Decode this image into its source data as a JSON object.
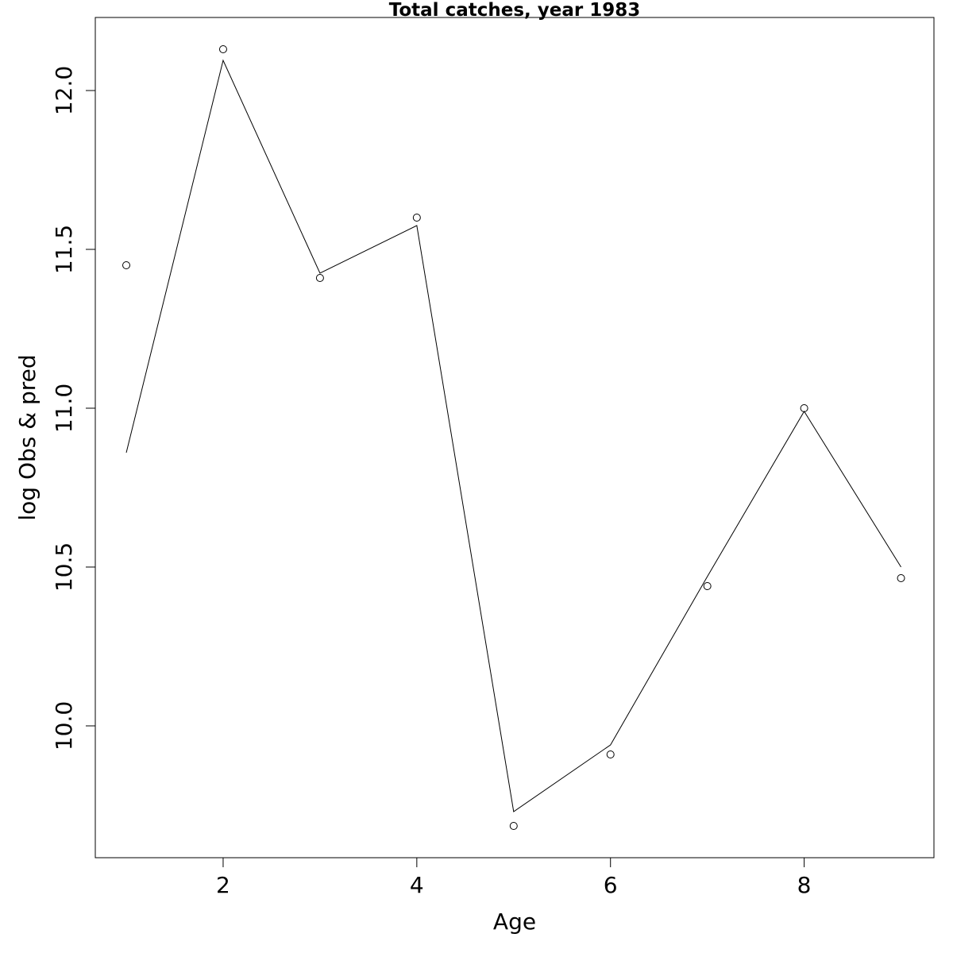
{
  "chart_data": {
    "type": "line",
    "title": "Total catches, year 1983",
    "xlabel": "Age",
    "ylabel": "log Obs & pred",
    "x": [
      1,
      2,
      3,
      4,
      5,
      6,
      7,
      8,
      9
    ],
    "series": [
      {
        "style": "points-open-circle",
        "values": [
          11.45,
          12.13,
          11.41,
          11.6,
          9.685,
          9.91,
          10.44,
          11.0,
          10.465
        ]
      },
      {
        "style": "line",
        "values": [
          10.86,
          12.095,
          11.425,
          11.575,
          9.73,
          9.94,
          10.47,
          10.99,
          10.5
        ]
      }
    ],
    "xlim": [
      0.68,
      9.34
    ],
    "ylim": [
      9.585,
      12.23
    ],
    "xticks": [
      "2",
      "4",
      "6",
      "8"
    ],
    "yticks": [
      "10.0",
      "10.5",
      "11.0",
      "11.5",
      "12.0"
    ],
    "grid": false,
    "legend": "none",
    "color": "#000000"
  }
}
